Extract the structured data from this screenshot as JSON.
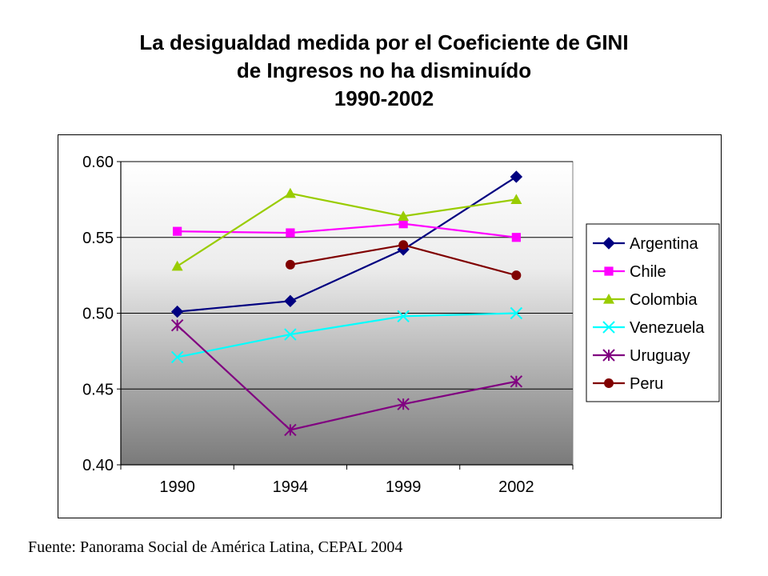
{
  "title_lines": [
    "La desigualdad medida por el Coeficiente de GINI",
    "de Ingresos no ha disminuído",
    "1990-2002"
  ],
  "source_note": "Fuente: Panorama Social de América Latina, CEPAL 2004",
  "chart_data": {
    "type": "line",
    "title": "La desigualdad medida por el Coeficiente de GINI de Ingresos no ha disminuído 1990-2002",
    "xlabel": "",
    "ylabel": "",
    "categories": [
      "1990",
      "1994",
      "1999",
      "2002"
    ],
    "ylim": [
      0.4,
      0.6
    ],
    "yticks": [
      0.4,
      0.45,
      0.5,
      0.55,
      0.6
    ],
    "ytick_labels": [
      "0.40",
      "0.45",
      "0.50",
      "0.55",
      "0.60"
    ],
    "grid": "horizontal",
    "legend_position": "right",
    "series": [
      {
        "name": "Argentina",
        "color": "#000080",
        "marker": "diamond",
        "values": [
          0.501,
          0.508,
          0.542,
          0.59
        ]
      },
      {
        "name": "Chile",
        "color": "#FF00FF",
        "marker": "square",
        "values": [
          0.554,
          0.553,
          0.559,
          0.55
        ]
      },
      {
        "name": "Colombia",
        "color": "#99CC00",
        "marker": "triangle",
        "values": [
          0.531,
          0.579,
          0.564,
          0.575
        ]
      },
      {
        "name": "Venezuela",
        "color": "#00FFFF",
        "marker": "x",
        "values": [
          0.471,
          0.486,
          0.498,
          0.5
        ]
      },
      {
        "name": "Uruguay",
        "color": "#800080",
        "marker": "star",
        "values": [
          0.492,
          0.423,
          0.44,
          0.455
        ]
      },
      {
        "name": "Peru",
        "color": "#800000",
        "marker": "circle",
        "values": [
          null,
          0.532,
          0.545,
          0.525
        ]
      }
    ]
  }
}
